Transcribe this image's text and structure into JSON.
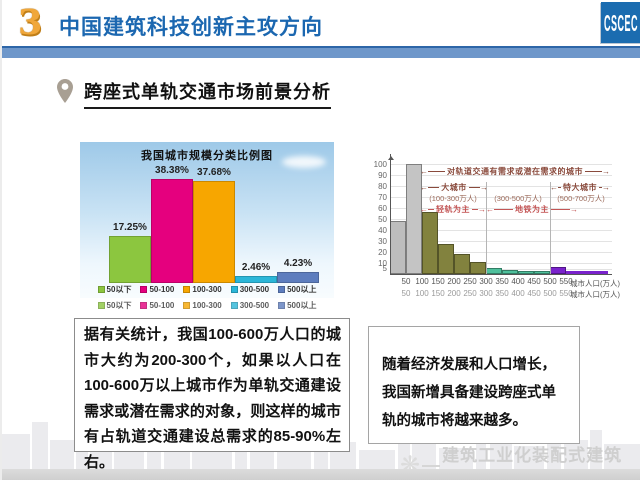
{
  "header": {
    "number": "3",
    "title": "中国建筑科技创新主攻方向",
    "logo": "CSCEC"
  },
  "subtitle": "跨座式单轨交通市场前景分析",
  "chart_data": [
    {
      "type": "bar",
      "title": "我国城市规模分类比例图",
      "categories": [
        "50以下",
        "50-100",
        "100-300",
        "300-500",
        "500以上"
      ],
      "values": [
        17.25,
        38.38,
        37.68,
        2.46,
        4.23
      ],
      "labels": [
        "17.25%",
        "38.38%",
        "37.68%",
        "2.46%",
        "4.23%"
      ],
      "colors": [
        "#8cc63f",
        "#e5007e",
        "#f7a600",
        "#2bb6d8",
        "#5d7dbe"
      ],
      "ylim": [
        0,
        42
      ],
      "unit": "%",
      "legend_position": "bottom"
    },
    {
      "type": "bar",
      "title": "",
      "x": [
        "50",
        "100",
        "150",
        "200",
        "250",
        "300",
        "350",
        "400",
        "450",
        "500",
        "550"
      ],
      "values": [
        48,
        100,
        56,
        27,
        18,
        11,
        5,
        3.5,
        3,
        2.5,
        6
      ],
      "tail_value": 1.5,
      "bar_colors": [
        "#bdbdbd",
        "#c4c4c4",
        "#82823e",
        "#82823e",
        "#82823e",
        "#82823e",
        "#4fc09c",
        "#4fc09c",
        "#4fc09c",
        "#4fc09c",
        "#7a22cc"
      ],
      "xlabel": "城市人口(万人)",
      "ylim": [
        0,
        105
      ],
      "yticks": [
        5,
        10,
        20,
        30,
        40,
        50,
        60,
        70,
        80,
        90,
        100
      ],
      "grid": true,
      "annotations": {
        "demand_span": "对轨道交通有需求或潜在需求的城市",
        "big_city": "大城市",
        "mega_city": "特大城市",
        "big_city_range": "(100-300万人)",
        "mid_range": "(300-500万人)",
        "mega_range": "(500-700万人)",
        "light_rail": "轻轨为主",
        "metro": "地铁为主"
      }
    }
  ],
  "notes": {
    "left": "据有关统计，我国100-600万人口的城市大约为200-300个，如果以人口在100-600万以上城市作为单轨交通建设需求或潜在需求的对象，则这样的城市有占轨道交通建设总需求的85-90%左右。",
    "right": "随着经济发展和人口增长，我国新增具备建设跨座式单轨的城市将越来越多。"
  },
  "footer": {
    "watermark": "建筑工业化装配式建筑网"
  },
  "colors": {
    "title_blue": "#1b67b0",
    "band_blue": "#6e97ca",
    "gold": "#f0a73a",
    "annotation_red": "#8a4a3c"
  }
}
